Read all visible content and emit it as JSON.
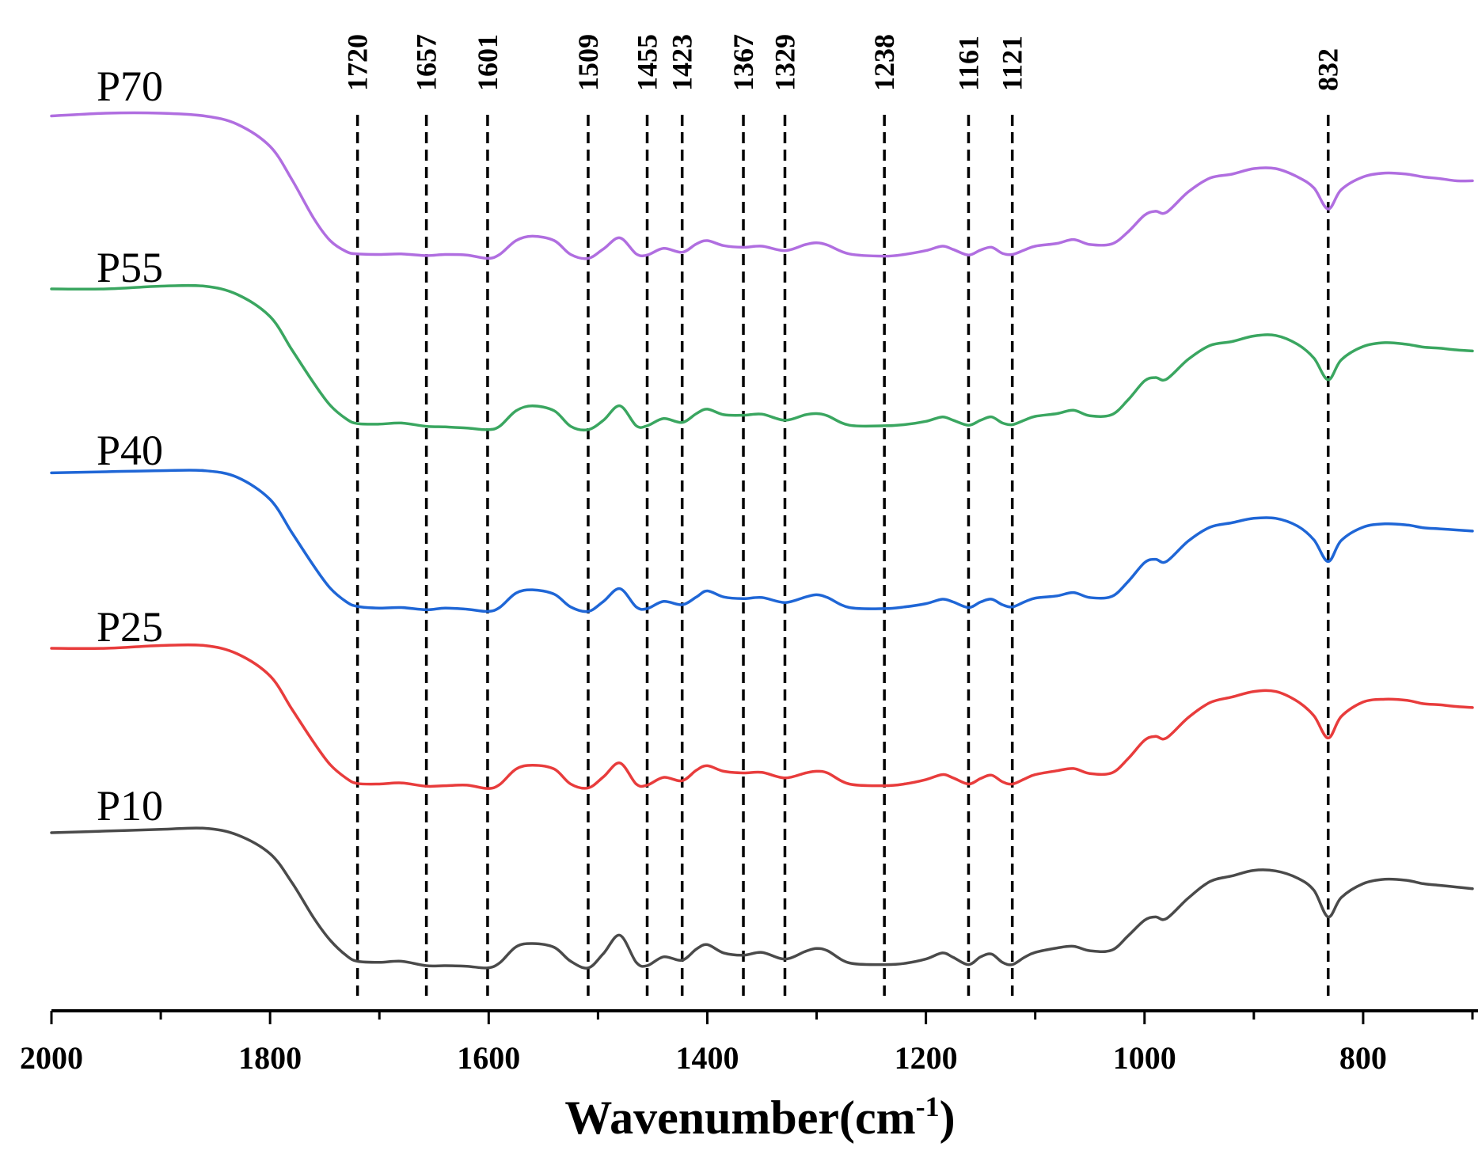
{
  "chart_data": {
    "type": "line",
    "title": "",
    "xlabel": "Wavenumber(cm",
    "xlabel_sup": "-1",
    "xlabel_close": ")",
    "ylabel": "",
    "xlim": [
      2000,
      700
    ],
    "x_reversed": true,
    "y_axis_shown": false,
    "grid": false,
    "x_ticks": [
      "2000",
      "1800",
      "1600",
      "1400",
      "1200",
      "1000",
      "800"
    ],
    "peak_markers": [
      "1720",
      "1657",
      "1601",
      "1509",
      "1455",
      "1423",
      "1367",
      "1329",
      "1238",
      "1161",
      "1121",
      "832"
    ],
    "x": [
      2000,
      1950,
      1900,
      1860,
      1830,
      1800,
      1780,
      1760,
      1745,
      1730,
      1720,
      1700,
      1680,
      1657,
      1640,
      1620,
      1601,
      1590,
      1575,
      1560,
      1540,
      1525,
      1509,
      1495,
      1480,
      1465,
      1455,
      1440,
      1423,
      1410,
      1400,
      1385,
      1367,
      1350,
      1329,
      1310,
      1300,
      1290,
      1270,
      1238,
      1220,
      1200,
      1185,
      1175,
      1161,
      1150,
      1140,
      1130,
      1121,
      1110,
      1100,
      1080,
      1065,
      1050,
      1030,
      1015,
      1000,
      990,
      980,
      960,
      940,
      920,
      900,
      880,
      860,
      845,
      832,
      820,
      800,
      780,
      760,
      745,
      730,
      715,
      700
    ],
    "series": [
      {
        "name": "P70",
        "color": "#b06ee0",
        "values": [
          99.5,
          100,
          100,
          99.5,
          98,
          94,
          88,
          81,
          77,
          75,
          74.6,
          74.5,
          74.6,
          74.3,
          74.5,
          74.4,
          73.8,
          74.5,
          77,
          77.8,
          77,
          74.5,
          73.8,
          75.5,
          77.5,
          74.6,
          74.4,
          75.6,
          74.9,
          76.4,
          77,
          76.1,
          75.8,
          76,
          75.2,
          76.3,
          76.6,
          76.2,
          74.6,
          74.2,
          74.5,
          75.2,
          76,
          75.4,
          74.4,
          75.3,
          75.8,
          74.7,
          74.5,
          75.3,
          76,
          76.5,
          77.2,
          76.3,
          76.4,
          78.6,
          81.6,
          82.3,
          82.1,
          85.8,
          88.3,
          89,
          90,
          90,
          88.5,
          86.5,
          82.7,
          86.2,
          88.5,
          89.2,
          89,
          88.5,
          88.2,
          87.8,
          87.8
        ]
      },
      {
        "name": "P55",
        "color": "#3aa660",
        "values": [
          101,
          101,
          101.5,
          101.5,
          100,
          96,
          90,
          84,
          80,
          77.5,
          76.7,
          76.6,
          76.8,
          76.2,
          76.1,
          75.9,
          75.6,
          76.2,
          79,
          79.9,
          79,
          76.2,
          75.6,
          77.3,
          79.9,
          76.3,
          76.3,
          77.6,
          76.9,
          78.5,
          79.3,
          78.3,
          78.2,
          78.4,
          77.3,
          78.3,
          78.5,
          78.1,
          76.4,
          76.3,
          76.5,
          77.1,
          77.9,
          77.3,
          76.4,
          77.3,
          77.9,
          76.8,
          76.5,
          77.3,
          78,
          78.5,
          79.1,
          78.1,
          78.3,
          81,
          84.4,
          85,
          84.7,
          88.3,
          90.8,
          91.5,
          92.5,
          92.6,
          91,
          88.5,
          84.6,
          88.2,
          90.6,
          91.3,
          91,
          90.5,
          90.3,
          90,
          89.8
        ]
      },
      {
        "name": "P40",
        "color": "#1f66d6",
        "values": [
          100.8,
          101,
          101.2,
          101.2,
          100,
          96,
          90,
          84,
          80,
          77.5,
          76.7,
          76.4,
          76.5,
          76.1,
          76.4,
          76.2,
          75.8,
          76.5,
          79.1,
          79.7,
          78.9,
          76.6,
          75.8,
          77.6,
          79.9,
          76.6,
          76.3,
          77.6,
          77,
          78.4,
          79.5,
          78.4,
          78.1,
          78.3,
          77.4,
          78.4,
          78.8,
          78.3,
          76.5,
          76.3,
          76.6,
          77.2,
          78,
          77.5,
          76.5,
          77.5,
          78,
          77,
          76.6,
          77.5,
          78.2,
          78.6,
          79.2,
          78.3,
          78.5,
          81.2,
          84.6,
          85.2,
          84.8,
          88.5,
          91,
          91.8,
          92.6,
          92.6,
          91.2,
          88.7,
          84.8,
          88.6,
          91,
          91.6,
          91.4,
          90.9,
          90.7,
          90.5,
          90.3
        ]
      },
      {
        "name": "P25",
        "color": "#e83c3c",
        "values": [
          101,
          101,
          101.5,
          101.5,
          100,
          96,
          90,
          84,
          80,
          77.5,
          76.6,
          76.5,
          76.7,
          76.1,
          76.2,
          76.3,
          75.7,
          76.4,
          79.2,
          79.9,
          79.2,
          76.5,
          75.8,
          77.8,
          80.3,
          76.5,
          76.3,
          77.7,
          77.1,
          79,
          79.8,
          78.8,
          78.5,
          78.6,
          77.6,
          78.5,
          78.8,
          78.5,
          76.5,
          76.2,
          76.5,
          77.3,
          78.2,
          77.6,
          76.5,
          77.5,
          78.1,
          76.9,
          76.5,
          77.4,
          78.2,
          78.9,
          79.3,
          78.4,
          78.5,
          81.1,
          84.4,
          85.1,
          84.8,
          88.5,
          91.2,
          92.2,
          93.2,
          93.2,
          91.4,
          88.8,
          84.8,
          88.7,
          91.3,
          91.8,
          91.6,
          91,
          90.8,
          90.5,
          90.3
        ]
      },
      {
        "name": "P10",
        "color": "#4a4a4a",
        "values": [
          100,
          100.3,
          100.6,
          100.8,
          99.6,
          96.2,
          91,
          84.6,
          80.6,
          77.8,
          76.8,
          76.6,
          76.8,
          76,
          76,
          75.9,
          75.6,
          76.5,
          79.4,
          80,
          79.3,
          76.8,
          75.6,
          78.2,
          81.5,
          76.6,
          76,
          77.6,
          77,
          79,
          79.8,
          78.3,
          77.9,
          78.4,
          77.2,
          78.6,
          79.1,
          78.7,
          76.5,
          76.2,
          76.4,
          77.2,
          78.3,
          77.5,
          76.2,
          77.6,
          78.1,
          76.6,
          76.2,
          77.5,
          78.4,
          79.2,
          79.5,
          78.7,
          78.8,
          81.4,
          84.2,
          84.8,
          84.5,
          88.2,
          91.2,
          92.2,
          93.2,
          93.1,
          91.8,
          89.6,
          84.8,
          88.3,
          90.8,
          91.6,
          91.4,
          90.8,
          90.5,
          90.2,
          89.9
        ]
      }
    ]
  }
}
